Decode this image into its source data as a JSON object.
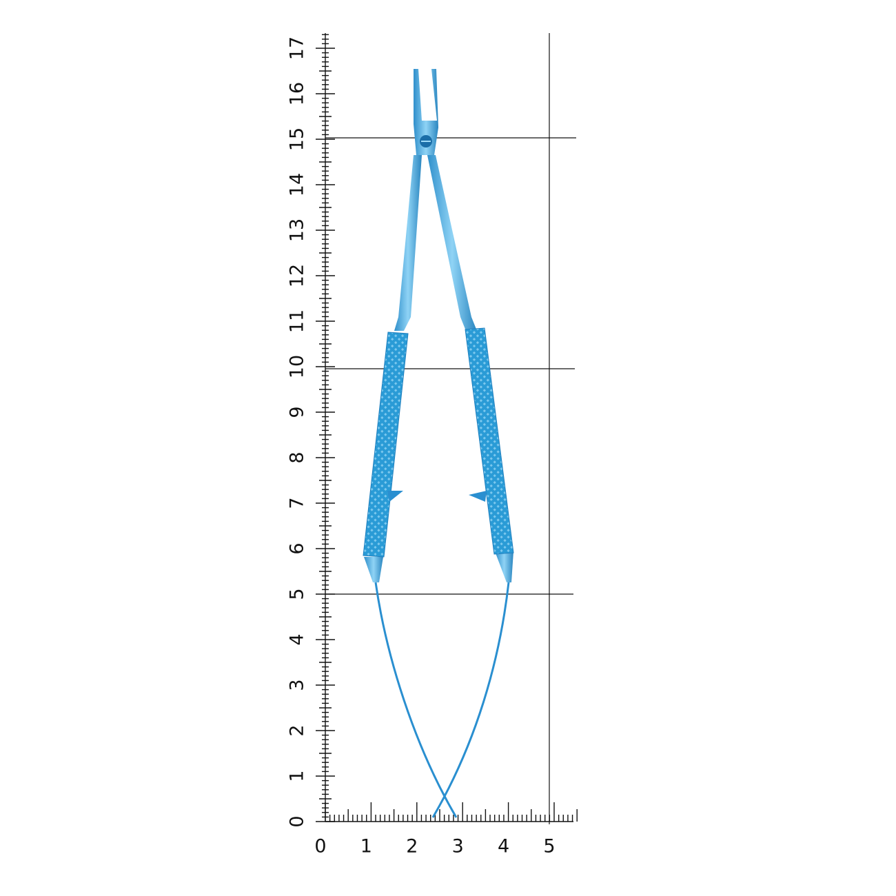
{
  "vertical_scale": {
    "labels": [
      0,
      1,
      2,
      3,
      4,
      5,
      6,
      7,
      8,
      9,
      10,
      11,
      12,
      13,
      14,
      15,
      16,
      17
    ]
  },
  "horizontal_scale": {
    "labels": [
      0,
      1,
      2,
      3,
      4,
      5
    ]
  }
}
